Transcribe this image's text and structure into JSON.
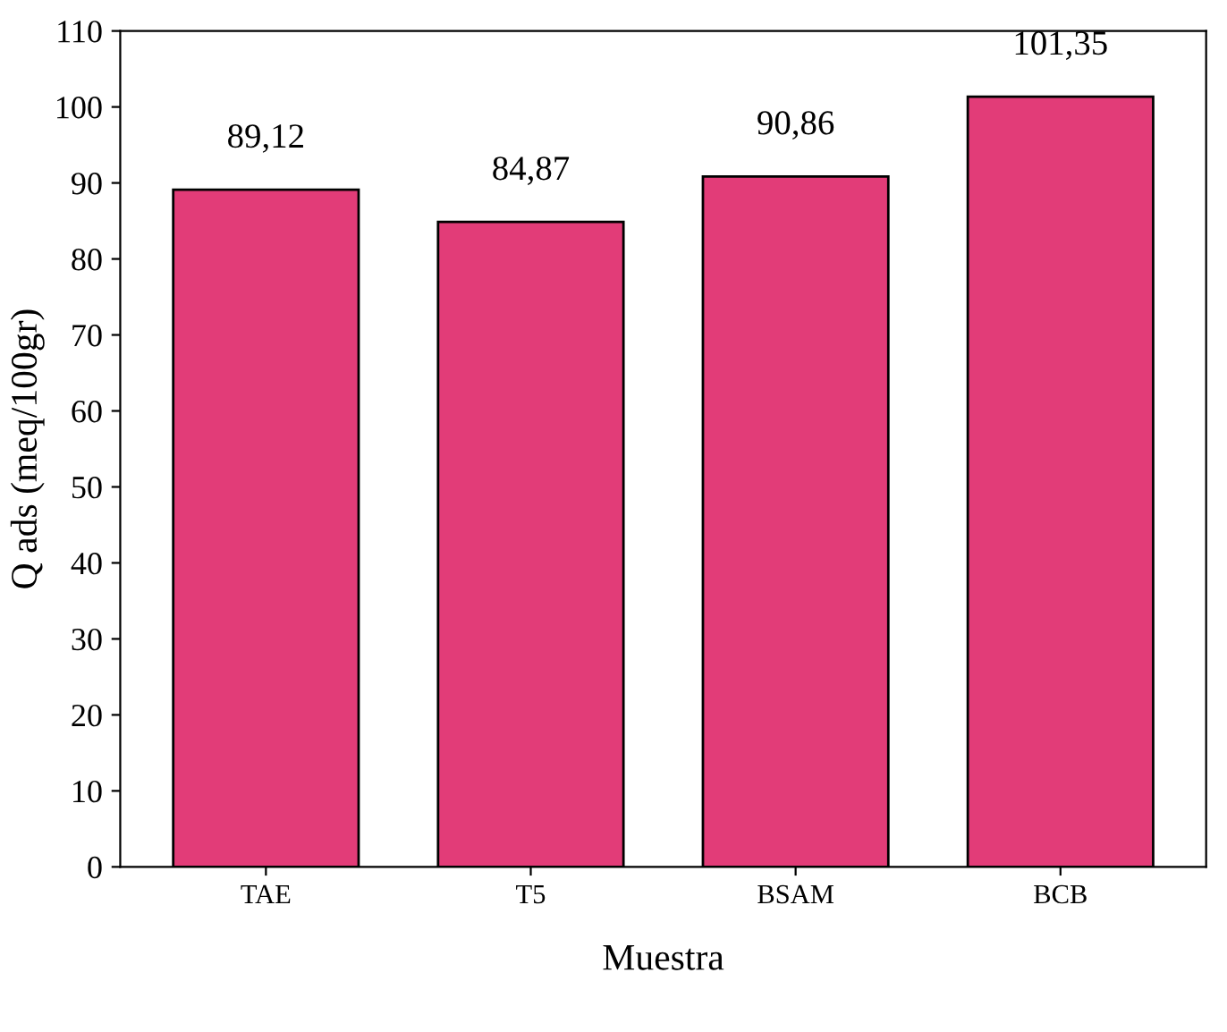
{
  "chart_data": {
    "type": "bar",
    "xlabel": "Muestra",
    "ylabel": "Q ads (meq/100gr)",
    "categories": [
      "TAE",
      "T5",
      "BSAM",
      "BCB"
    ],
    "values": [
      89.12,
      84.87,
      90.86,
      101.35
    ],
    "value_labels": [
      "89,12",
      "84,87",
      "90,86",
      "101,35"
    ],
    "color": "#e23c78",
    "ylim": [
      0,
      110
    ],
    "yticks": [
      0,
      10,
      20,
      30,
      40,
      50,
      60,
      70,
      80,
      90,
      100,
      110
    ],
    "grid": false,
    "legend": false
  }
}
